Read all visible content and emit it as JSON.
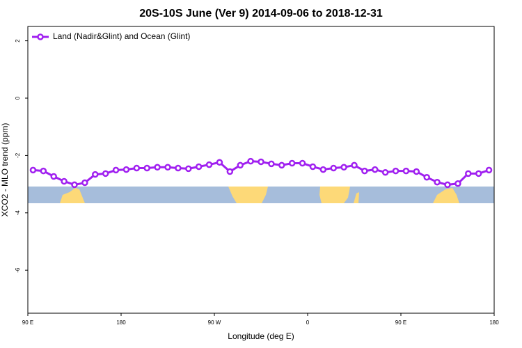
{
  "chart_data": {
    "type": "line",
    "title": "20S-10S June (Ver 9)   2014-09-06 to 2018-12-31",
    "x_label": "Longitude (deg E)",
    "y_label": "XCO2 - MLO trend (ppm)",
    "legend_position": "top-left",
    "x": [
      95,
      105,
      115,
      125,
      135,
      145,
      155,
      165,
      175,
      185,
      195,
      205,
      215,
      225,
      235,
      245,
      255,
      265,
      275,
      285,
      295,
      305,
      315,
      325,
      335,
      345,
      355,
      365,
      375,
      385,
      395,
      405,
      415,
      425,
      435,
      445,
      455,
      465,
      475,
      485,
      495,
      505,
      515,
      525,
      535
    ],
    "series": [
      {
        "name": "Land (Nadir&Glint) and Ocean (Glint)",
        "color": "#a020f0",
        "values": [
          -2.51,
          -2.54,
          -2.73,
          -2.9,
          -3.02,
          -2.95,
          -2.66,
          -2.63,
          -2.51,
          -2.49,
          -2.44,
          -2.44,
          -2.41,
          -2.41,
          -2.44,
          -2.46,
          -2.39,
          -2.32,
          -2.24,
          -2.56,
          -2.34,
          -2.2,
          -2.22,
          -2.29,
          -2.34,
          -2.27,
          -2.27,
          -2.39,
          -2.49,
          -2.44,
          -2.41,
          -2.34,
          -2.54,
          -2.49,
          -2.59,
          -2.54,
          -2.54,
          -2.56,
          -2.76,
          -2.93,
          -3.02,
          -2.98,
          -2.63,
          -2.63,
          -2.51
        ]
      }
    ],
    "xlim": [
      90,
      540
    ],
    "xticks": [
      {
        "value": 90,
        "label": "90 E"
      },
      180,
      {
        "value": 270,
        "label": "90 W"
      },
      {
        "value": 360,
        "label": "0"
      },
      {
        "value": 450,
        "label": "90 E"
      },
      {
        "value": 540,
        "label": "180"
      }
    ],
    "ylim": [
      -7.5,
      2.5
    ],
    "yticks": [
      2,
      0,
      -2,
      -4,
      -6
    ]
  }
}
